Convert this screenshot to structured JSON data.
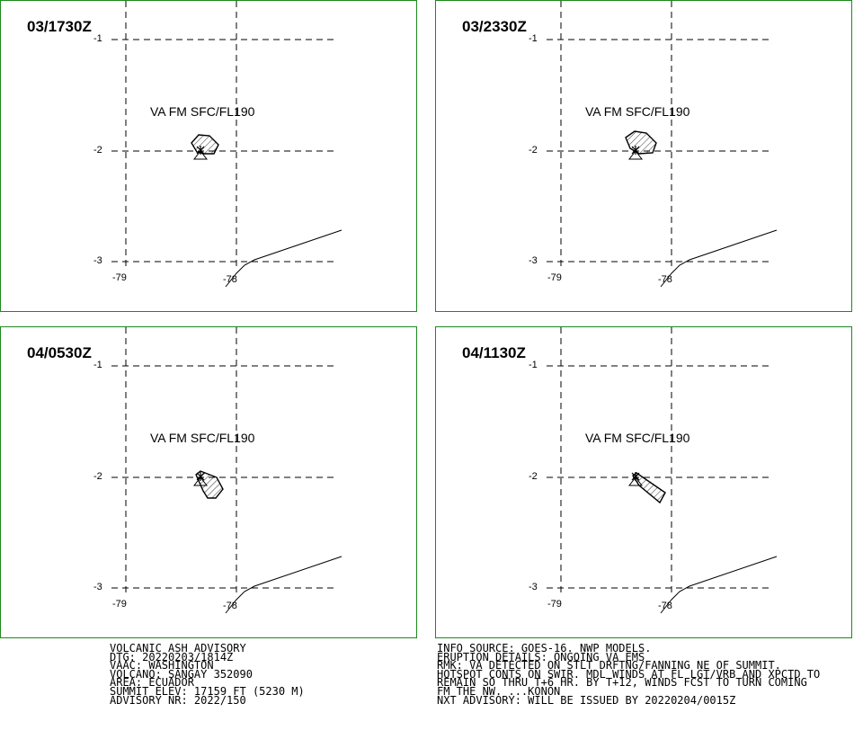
{
  "panels": [
    {
      "time": "03/1730Z",
      "label": "VA FM SFC/FL190",
      "shape": "blob1"
    },
    {
      "time": "03/2330Z",
      "label": "VA FM SFC/FL190",
      "shape": "blob2"
    },
    {
      "time": "04/0530Z",
      "label": "VA FM SFC/FL190",
      "shape": "blob3"
    },
    {
      "time": "04/1130Z",
      "label": "VA FM SFC/FL190",
      "shape": "wedge"
    }
  ],
  "axes": {
    "lat_labels": [
      "-1",
      "-2",
      "-3"
    ],
    "lon_labels": [
      "-79",
      "-78"
    ]
  },
  "footer_left": [
    "VOLCANIC ASH ADVISORY",
    "DTG: 20220203/1814Z",
    "VAAC: WASHINGTON",
    "VOLCANO: SANGAY 352090",
    "AREA: ECUADOR",
    "SUMMIT ELEV: 17159 FT (5230 M)",
    "ADVISORY NR: 2022/150"
  ],
  "footer_right": [
    "INFO SOURCE: GOES-16. NWP MODELS.",
    "ERUPTION DETAILS: ONGOING VA EMS",
    "RMK: VA DETECTED ON STLT DRFTNG/FANNING NE OF SUMMIT.",
    "HOTSPOT CONTS ON SWIR. MDL WINDS AT FL LGT/VRB AND XPCTD TO",
    "REMAIN SO THRU T+6 HR. BY T+12, WINDS FCST TO TURN COMING",
    "FM THE NW. ...KONON",
    "NXT ADVISORY: WILL BE ISSUED BY 20220204/0015Z"
  ],
  "colors": {
    "border": "#1c8a1c",
    "line": "#000000"
  }
}
